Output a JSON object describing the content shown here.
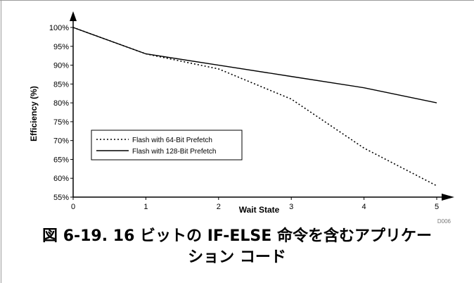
{
  "chart_data": {
    "type": "line",
    "x": [
      0,
      1,
      2,
      3,
      4,
      5
    ],
    "xlabel": "Wait State",
    "ylabel": "Efficiency (%)",
    "xlim": [
      0,
      5
    ],
    "ylim": [
      55,
      100
    ],
    "x_ticks": [
      "0",
      "1",
      "2",
      "3",
      "4",
      "5"
    ],
    "y_ticks": [
      "55%",
      "60%",
      "65%",
      "70%",
      "75%",
      "80%",
      "85%",
      "90%",
      "95%",
      "100%"
    ],
    "grid": false,
    "legend_position": "middle-left",
    "series": [
      {
        "name": "Flash with 64-Bit Prefetch",
        "style": "dotted",
        "values": [
          100,
          93,
          89,
          81,
          68,
          58
        ]
      },
      {
        "name": "Flash with 128-Bit Prefetch",
        "style": "solid",
        "values": [
          100,
          93,
          90,
          87,
          84,
          80
        ]
      }
    ],
    "figure_code": "D006"
  },
  "caption": {
    "line1": "図 6-19. 16 ビットの IF-ELSE 命令を含むアプリケー",
    "line2": "ション コード"
  }
}
